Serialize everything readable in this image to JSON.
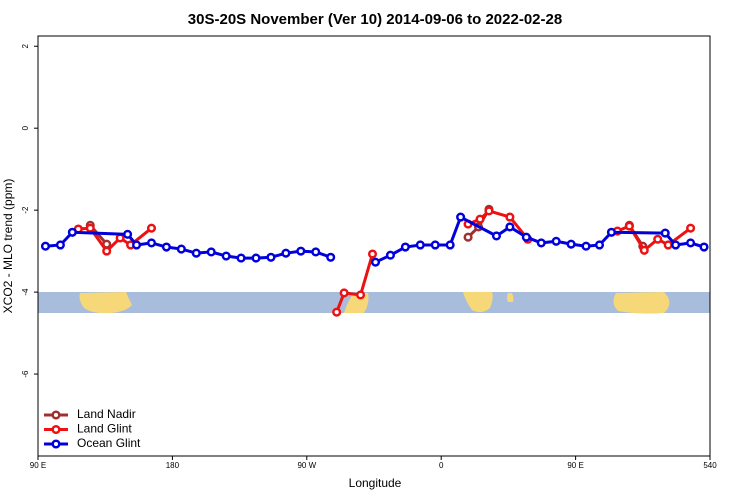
{
  "chart_data": {
    "type": "line",
    "title": "30S-20S November (Ver 10)   2014-09-06 to 2022-02-28",
    "x_label": "Longitude",
    "y_label": "XCO2 - MLO trend (ppm)",
    "xlim": [
      90,
      540
    ],
    "ylim": [
      -8,
      2.25
    ],
    "xticks": [
      {
        "value": 90,
        "label": "90 E"
      },
      180,
      {
        "value": 270,
        "label": "90 W"
      },
      {
        "value": 360,
        "label": "0"
      },
      {
        "value": 450,
        "label": "90 E"
      },
      540
    ],
    "yticks": [
      -6,
      -4,
      -2,
      0,
      2
    ],
    "legend": "bottom-left",
    "series": [
      {
        "name": "Land Nadir",
        "color": "#a03030",
        "x": [
          125,
          136,
          null,
          378,
          385,
          392,
          null,
          486,
          495
        ],
        "values": [
          -2.37,
          -2.83,
          null,
          -2.66,
          -2.41,
          -1.98,
          null,
          -2.37,
          -2.88
        ]
      },
      {
        "name": "Land Glint",
        "color": "#ee1111",
        "x": [
          117,
          125,
          136,
          145,
          152,
          166,
          null,
          290,
          295,
          306,
          314,
          null,
          378,
          386,
          392,
          406,
          418,
          null,
          478,
          486,
          496,
          505,
          512,
          527
        ],
        "values": [
          -2.46,
          -2.44,
          -3.0,
          -2.68,
          -2.85,
          -2.44,
          null,
          -4.49,
          -4.02,
          -4.07,
          -3.07,
          null,
          -2.34,
          -2.22,
          -2.02,
          -2.17,
          -2.71,
          null,
          -2.51,
          -2.39,
          -2.98,
          -2.71,
          -2.85,
          -2.44
        ]
      },
      {
        "name": "Ocean Glint",
        "color": "#0000dd",
        "x": [
          95,
          105,
          113,
          150,
          156,
          166,
          176,
          186,
          196,
          206,
          216,
          226,
          236,
          246,
          256,
          266,
          276,
          286,
          null,
          316,
          326,
          336,
          346,
          356,
          366,
          373,
          397,
          406,
          417,
          427,
          437,
          447,
          457,
          466,
          474,
          510,
          517,
          527,
          536
        ],
        "values": [
          -2.88,
          -2.85,
          -2.54,
          -2.59,
          -2.85,
          -2.8,
          -2.9,
          -2.95,
          -3.05,
          -3.02,
          -3.12,
          -3.17,
          -3.17,
          -3.15,
          -3.05,
          -3.0,
          -3.02,
          -3.15,
          null,
          -3.27,
          -3.1,
          -2.9,
          -2.85,
          -2.85,
          -2.85,
          -2.17,
          -2.63,
          -2.41,
          -2.66,
          -2.8,
          -2.76,
          -2.83,
          -2.88,
          -2.85,
          -2.54,
          -2.56,
          -2.85,
          -2.8,
          -2.9
        ]
      }
    ]
  }
}
